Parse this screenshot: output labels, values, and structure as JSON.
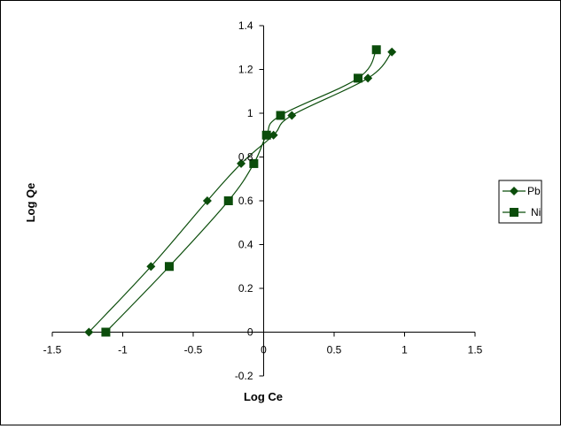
{
  "chart_data": {
    "type": "scatter",
    "xlabel": "Log Ce",
    "ylabel": "Log Qe",
    "xlim": [
      -1.5,
      1.5
    ],
    "ylim": [
      -0.2,
      1.4
    ],
    "x_ticks": [
      "-1.5",
      "-1",
      "-0.5",
      "0",
      "0.5",
      "1",
      "1.5"
    ],
    "y_ticks": [
      "1.4",
      "1.2",
      "1",
      "0.8",
      "0.6",
      "0.4",
      "0.2",
      "0",
      "-0.2"
    ],
    "grid": false,
    "legend_position": "right",
    "line_color": "#0b4d0b",
    "series": [
      {
        "name": "Pb",
        "marker": "diamond",
        "points": [
          {
            "x": -1.24,
            "y": 0.0
          },
          {
            "x": -0.8,
            "y": 0.3
          },
          {
            "x": -0.4,
            "y": 0.6
          },
          {
            "x": -0.16,
            "y": 0.77
          },
          {
            "x": 0.07,
            "y": 0.9
          },
          {
            "x": 0.2,
            "y": 0.99
          },
          {
            "x": 0.74,
            "y": 1.16
          },
          {
            "x": 0.91,
            "y": 1.28
          }
        ]
      },
      {
        "name": "Ni",
        "marker": "square",
        "points": [
          {
            "x": -1.12,
            "y": 0.0
          },
          {
            "x": -0.67,
            "y": 0.3
          },
          {
            "x": -0.25,
            "y": 0.6
          },
          {
            "x": -0.07,
            "y": 0.77
          },
          {
            "x": 0.02,
            "y": 0.9
          },
          {
            "x": 0.12,
            "y": 0.99
          },
          {
            "x": 0.67,
            "y": 1.16
          },
          {
            "x": 0.8,
            "y": 1.29
          }
        ]
      }
    ]
  }
}
